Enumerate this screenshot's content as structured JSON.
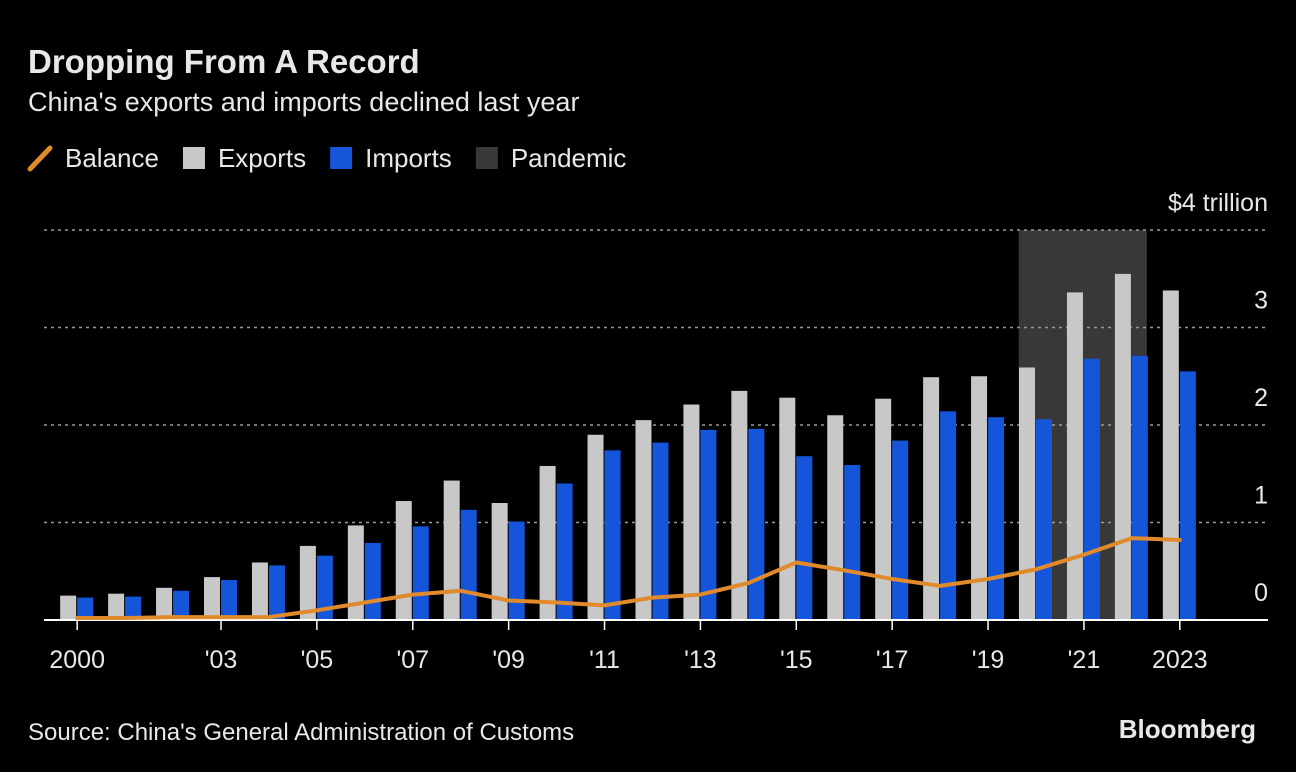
{
  "chart_data": {
    "type": "bar",
    "title": "Dropping From A Record",
    "subtitle": "China's exports and imports declined last year",
    "source": "Source: China's General Administration of Customs",
    "credit": "Bloomberg",
    "x": [
      2000,
      2001,
      2002,
      2003,
      2004,
      2005,
      2006,
      2007,
      2008,
      2009,
      2010,
      2011,
      2012,
      2013,
      2014,
      2015,
      2016,
      2017,
      2018,
      2019,
      2020,
      2021,
      2022,
      2023
    ],
    "series": [
      {
        "name": "Balance",
        "type": "line",
        "color": "#e08a2c",
        "values": [
          0.02,
          0.02,
          0.03,
          0.03,
          0.03,
          0.1,
          0.18,
          0.26,
          0.3,
          0.2,
          0.18,
          0.15,
          0.23,
          0.26,
          0.38,
          0.59,
          0.51,
          0.42,
          0.35,
          0.42,
          0.52,
          0.67,
          0.84,
          0.82
        ]
      },
      {
        "name": "Exports",
        "type": "bar",
        "color": "#c8c8c8",
        "values": [
          0.25,
          0.27,
          0.33,
          0.44,
          0.59,
          0.76,
          0.97,
          1.22,
          1.43,
          1.2,
          1.58,
          1.9,
          2.05,
          2.21,
          2.35,
          2.28,
          2.1,
          2.27,
          2.49,
          2.5,
          2.59,
          3.36,
          3.55,
          3.38
        ]
      },
      {
        "name": "Imports",
        "type": "bar",
        "color": "#1455d9",
        "values": [
          0.23,
          0.24,
          0.3,
          0.41,
          0.56,
          0.66,
          0.79,
          0.96,
          1.13,
          1.01,
          1.4,
          1.74,
          1.82,
          1.95,
          1.96,
          1.68,
          1.59,
          1.84,
          2.14,
          2.08,
          2.06,
          2.68,
          2.71,
          2.55
        ]
      }
    ],
    "shade": {
      "name": "Pandemic",
      "color": "#383838",
      "range": [
        2020,
        2022
      ]
    },
    "xlim": [
      1999.6,
      2023.4
    ],
    "xticks": [
      2000,
      {
        "value": 2003,
        "label": "'03"
      },
      {
        "value": 2005,
        "label": "'05"
      },
      {
        "value": 2007,
        "label": "'07"
      },
      {
        "value": 2009,
        "label": "'09"
      },
      {
        "value": 2011,
        "label": "'11"
      },
      {
        "value": 2013,
        "label": "'13"
      },
      {
        "value": 2015,
        "label": "'15"
      },
      {
        "value": 2017,
        "label": "'17"
      },
      {
        "value": 2019,
        "label": "'19"
      },
      {
        "value": 2021,
        "label": "'21"
      },
      2023
    ],
    "ylim": [
      0,
      4
    ],
    "yticks": [
      0,
      1,
      2,
      3,
      {
        "value": 4,
        "label": "$4 trillion"
      }
    ],
    "grid": true
  }
}
